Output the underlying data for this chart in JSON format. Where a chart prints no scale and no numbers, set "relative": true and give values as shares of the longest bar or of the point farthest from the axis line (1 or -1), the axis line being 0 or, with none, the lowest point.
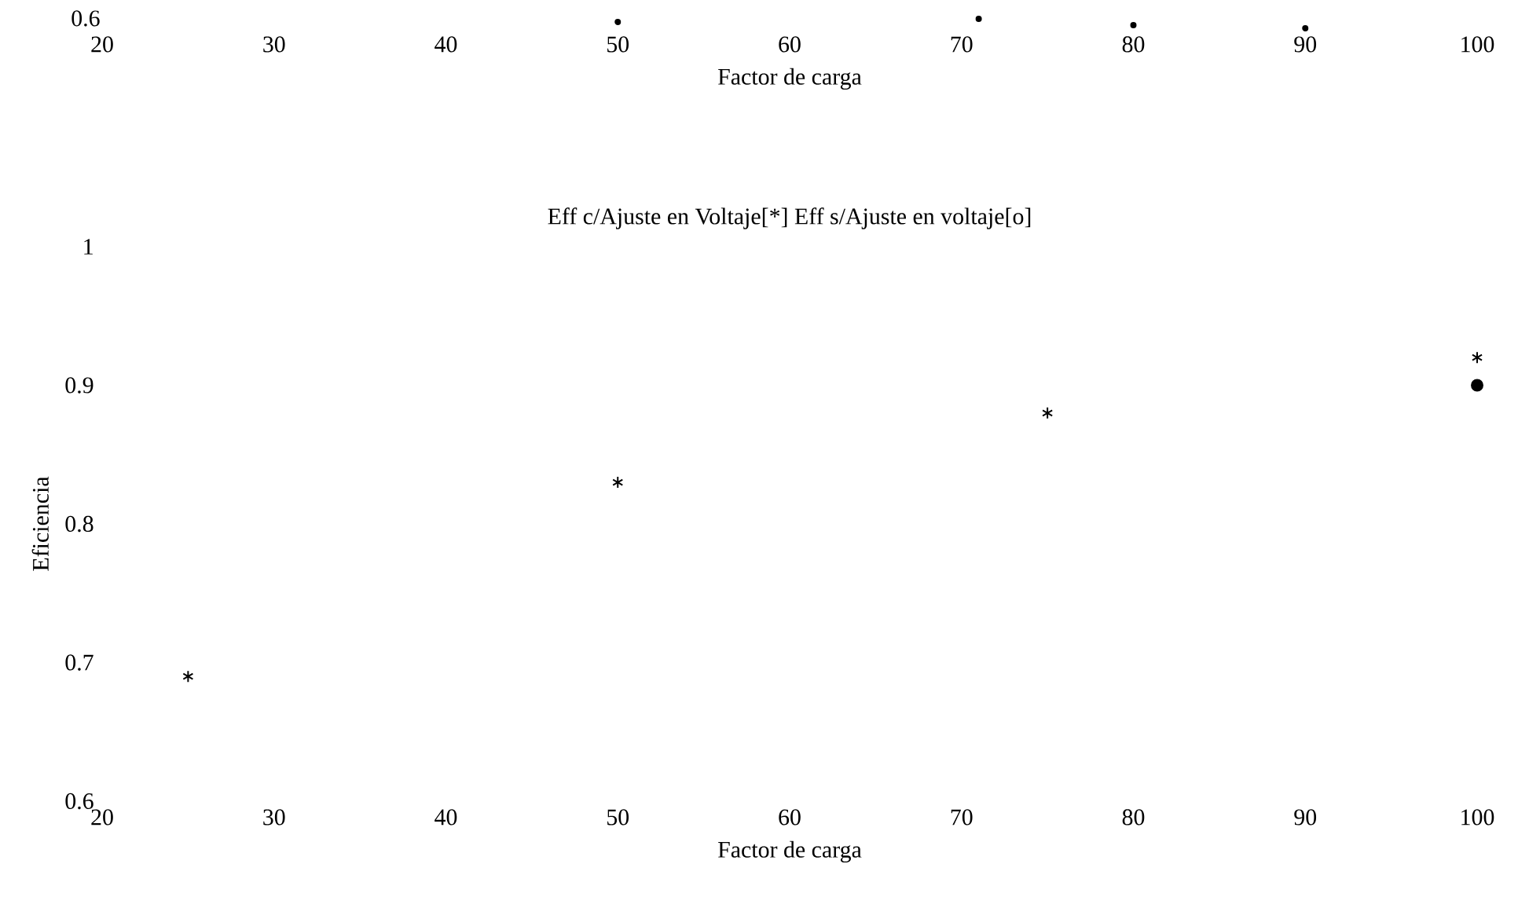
{
  "chart_data": [
    {
      "type": "scatter",
      "relative": true,
      "color": "#000000",
      "x": [
        50,
        71,
        80,
        90
      ],
      "values": [
        0.67,
        1,
        0.33,
        0
      ],
      "xlabel": "Factor de carga",
      "annotations": [
        "0.6"
      ],
      "xlim": [
        20,
        100
      ],
      "xticks": [
        20,
        30,
        40,
        50,
        60,
        70,
        80,
        90,
        100
      ]
    },
    {
      "type": "scatter",
      "title": "Eff c/Ajuste en Voltaje[*] Eff s/Ajuste en voltaje[o]",
      "xlabel": "Factor de carga",
      "ylabel": "Eficiencia",
      "series": [
        {
          "color": "#000000",
          "marker": "cross",
          "x": [
            25,
            50,
            75,
            100
          ],
          "values": [
            0.69,
            0.83,
            0.88,
            0.92
          ]
        },
        {
          "color": "#000000",
          "marker": "circle",
          "x": [
            100
          ],
          "values": [
            0.9
          ]
        }
      ],
      "xlim": [
        20,
        100
      ],
      "xticks": [
        20,
        30,
        40,
        50,
        60,
        70,
        80,
        90,
        100
      ],
      "ylim": [
        0.6,
        1
      ],
      "yticks": [
        0.6,
        0.7,
        0.8,
        0.9,
        1
      ]
    }
  ]
}
